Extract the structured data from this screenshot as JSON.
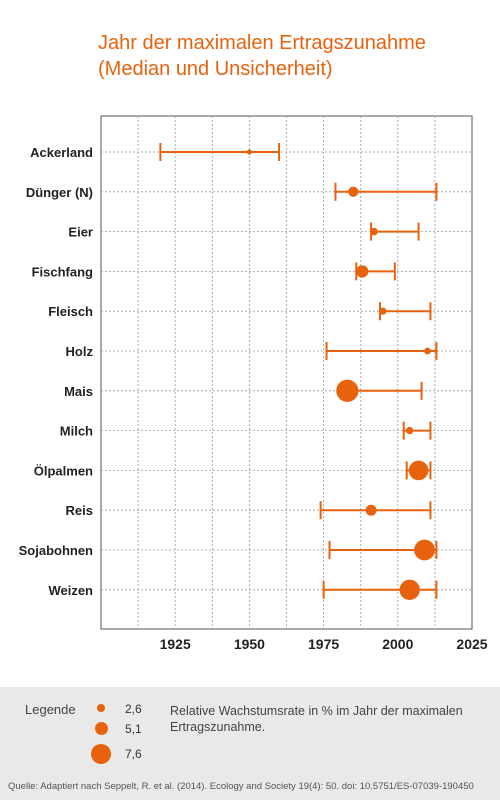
{
  "title_lines": [
    "Jahr der maximalen Ertragszunahme",
    "(Median und Unsicherheit)"
  ],
  "accent_color": "#e8620e",
  "chart_data": {
    "type": "scatter",
    "title": "Jahr der maximalen Ertragszunahme (Median und Unsicherheit)",
    "xlim": [
      1900,
      2025
    ],
    "xticks": [
      1925,
      1950,
      1975,
      2000,
      2025
    ],
    "grid": true,
    "categories": [
      "Ackerland",
      "Dünger (N)",
      "Eier",
      "Fischfang",
      "Fleisch",
      "Holz",
      "Mais",
      "Milch",
      "Ölpalmen",
      "Reis",
      "Sojabohnen",
      "Weizen"
    ],
    "median": [
      1950,
      1985,
      1992,
      1988,
      1995,
      2010,
      1983,
      2004,
      2007,
      1991,
      2009,
      2004
    ],
    "lower": [
      1920,
      1979,
      1991,
      1986,
      1994,
      1976,
      1981,
      2002,
      2003,
      1974,
      1977,
      1975
    ],
    "upper": [
      1960,
      2013,
      2007,
      1999,
      2011,
      2013,
      2008,
      2011,
      2011,
      2011,
      2013,
      2013
    ],
    "growth_rate": [
      0.5,
      2.6,
      1.5,
      3.5,
      1.3,
      1.1,
      7.6,
      1.4,
      6.5,
      2.9,
      7.0,
      6.8
    ],
    "legend": {
      "title": "Legende",
      "sizes": [
        "2,6",
        "5,1",
        "7,6"
      ],
      "description": "Relative Wachstumsrate in % im Jahr der maximalen Ertragszunahme."
    }
  },
  "source": "Quelle: Adaptiert nach Seppelt, R. et al. (2014). Ecology and Society 19(4): 50. doi: 10.5751/ES-07039-190450"
}
